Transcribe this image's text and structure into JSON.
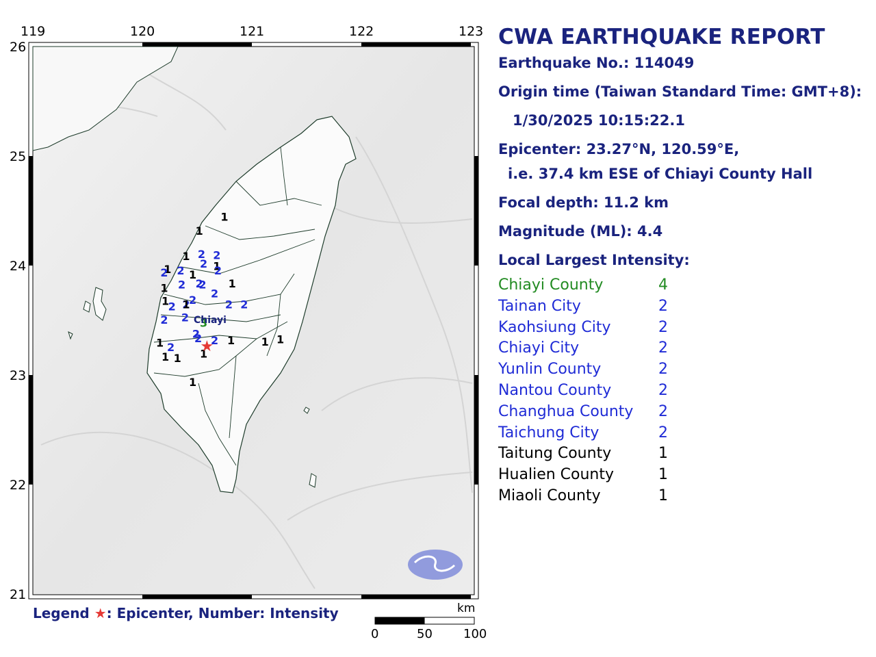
{
  "report": {
    "title": "CWA EARTHQUAKE REPORT",
    "earthquake_no": "Earthquake No.: 114049",
    "origin_time_label": "Origin time (Taiwan Standard Time: GMT+8):",
    "origin_time": "1/30/2025 10:15:22.1",
    "epicenter": "Epicenter: 23.27°N, 120.59°E,",
    "epicenter_relative": "i.e. 37.4 km ESE of Chiayi County Hall",
    "focal_depth": "Focal depth: 11.2 km",
    "magnitude": "Magnitude (ML): 4.4",
    "intensity_heading": "Local Largest Intensity:"
  },
  "intensity_table": [
    {
      "county": "Chiayi County",
      "intensity": "4",
      "color": "#228b22"
    },
    {
      "county": "Tainan City",
      "intensity": "2",
      "color": "#1f2bd6"
    },
    {
      "county": "Kaohsiung City",
      "intensity": "2",
      "color": "#1f2bd6"
    },
    {
      "county": "Chiayi City",
      "intensity": "2",
      "color": "#1f2bd6"
    },
    {
      "county": "Yunlin County",
      "intensity": "2",
      "color": "#1f2bd6"
    },
    {
      "county": "Nantou County",
      "intensity": "2",
      "color": "#1f2bd6"
    },
    {
      "county": "Changhua County",
      "intensity": "2",
      "color": "#1f2bd6"
    },
    {
      "county": "Taichung City",
      "intensity": "2",
      "color": "#1f2bd6"
    },
    {
      "county": "Taitung County",
      "intensity": "1",
      "color": "#000000"
    },
    {
      "county": "Hualien County",
      "intensity": "1",
      "color": "#000000"
    },
    {
      "county": "Miaoli County",
      "intensity": "1",
      "color": "#000000"
    }
  ],
  "map": {
    "lon_ticks": [
      "119",
      "120",
      "121",
      "122",
      "123"
    ],
    "lat_ticks": [
      "26",
      "25",
      "24",
      "23",
      "22",
      "21"
    ],
    "epicenter": {
      "lat": 23.27,
      "lon": 120.59
    },
    "city_label": "Chiayi",
    "station_intensities": [
      {
        "lat": 24.41,
        "lon": 120.75,
        "value": "1"
      },
      {
        "lat": 24.28,
        "lon": 120.52,
        "value": "1"
      },
      {
        "lat": 24.05,
        "lon": 120.4,
        "value": "1"
      },
      {
        "lat": 24.07,
        "lon": 120.54,
        "value": "2"
      },
      {
        "lat": 24.06,
        "lon": 120.68,
        "value": "2"
      },
      {
        "lat": 23.98,
        "lon": 120.56,
        "value": "2"
      },
      {
        "lat": 23.96,
        "lon": 120.68,
        "value": "1"
      },
      {
        "lat": 23.92,
        "lon": 120.69,
        "value": "2"
      },
      {
        "lat": 23.92,
        "lon": 120.35,
        "value": "2"
      },
      {
        "lat": 23.93,
        "lon": 120.23,
        "value": "1"
      },
      {
        "lat": 23.9,
        "lon": 120.2,
        "value": "2"
      },
      {
        "lat": 23.88,
        "lon": 120.46,
        "value": "1"
      },
      {
        "lat": 23.79,
        "lon": 120.36,
        "value": "2"
      },
      {
        "lat": 23.8,
        "lon": 120.52,
        "value": "2"
      },
      {
        "lat": 23.79,
        "lon": 120.55,
        "value": "2"
      },
      {
        "lat": 23.8,
        "lon": 120.82,
        "value": "1"
      },
      {
        "lat": 23.76,
        "lon": 120.2,
        "value": "1"
      },
      {
        "lat": 23.71,
        "lon": 120.66,
        "value": "2"
      },
      {
        "lat": 23.64,
        "lon": 120.21,
        "value": "1"
      },
      {
        "lat": 23.65,
        "lon": 120.46,
        "value": "2"
      },
      {
        "lat": 23.61,
        "lon": 120.4,
        "value": "2"
      },
      {
        "lat": 23.59,
        "lon": 120.27,
        "value": "2"
      },
      {
        "lat": 23.61,
        "lon": 120.79,
        "value": "2"
      },
      {
        "lat": 23.61,
        "lon": 120.93,
        "value": "2"
      },
      {
        "lat": 23.61,
        "lon": 120.4,
        "value": "1"
      },
      {
        "lat": 23.47,
        "lon": 120.2,
        "value": "2"
      },
      {
        "lat": 23.49,
        "lon": 120.39,
        "value": "2"
      },
      {
        "lat": 23.44,
        "lon": 120.56,
        "value": "3"
      },
      {
        "lat": 23.34,
        "lon": 120.49,
        "value": "2"
      },
      {
        "lat": 23.3,
        "lon": 120.51,
        "value": "2"
      },
      {
        "lat": 23.28,
        "lon": 120.66,
        "value": "2"
      },
      {
        "lat": 23.28,
        "lon": 120.81,
        "value": "1"
      },
      {
        "lat": 23.27,
        "lon": 121.12,
        "value": "1"
      },
      {
        "lat": 23.29,
        "lon": 121.26,
        "value": "1"
      },
      {
        "lat": 23.26,
        "lon": 120.16,
        "value": "1"
      },
      {
        "lat": 23.22,
        "lon": 120.26,
        "value": "2"
      },
      {
        "lat": 23.13,
        "lon": 120.21,
        "value": "1"
      },
      {
        "lat": 23.12,
        "lon": 120.32,
        "value": "1"
      },
      {
        "lat": 23.16,
        "lon": 120.56,
        "value": "1"
      },
      {
        "lat": 22.9,
        "lon": 120.46,
        "value": "1"
      }
    ],
    "intensity_colors": {
      "1": "#000000",
      "2": "#1f2bd6",
      "3": "#228b22"
    }
  },
  "legend": {
    "label": "Legend",
    "star_symbol": "★",
    "text": ": Epicenter, Number: Intensity"
  },
  "scale_bar": {
    "unit": "km",
    "labels": [
      "0",
      "50",
      "100"
    ]
  }
}
